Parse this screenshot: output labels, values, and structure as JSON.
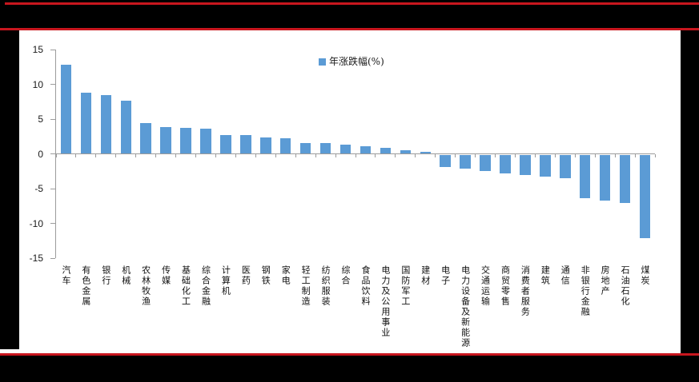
{
  "page": {
    "background_color": "#000000",
    "rule_color": "#C8161E",
    "panel_background": "#FFFFFF"
  },
  "legend": {
    "label": "年涨跌幅(%)"
  },
  "chart_data": {
    "type": "bar",
    "title": "",
    "xlabel": "",
    "ylabel": "",
    "ylim": [
      -15,
      15
    ],
    "yticks": [
      15,
      10,
      5,
      0,
      -5,
      -10,
      -15
    ],
    "grid": false,
    "legend_position": "top-center",
    "bar_color": "#5B9BD5",
    "axis_color": "#9c9c9c",
    "series_name": "年涨跌幅(%)",
    "categories": [
      "汽车",
      "有色金属",
      "银行",
      "机械",
      "农林牧渔",
      "传媒",
      "基础化工",
      "综合金融",
      "计算机",
      "医药",
      "钢铁",
      "家电",
      "轻工制造",
      "纺织服装",
      "综合",
      "食品饮料",
      "电力及公用事业",
      "国防军工",
      "建材",
      "电子",
      "电力设备及新能源",
      "交通运输",
      "商贸零售",
      "消费者服务",
      "建筑",
      "通信",
      "非银行金融",
      "房地产",
      "石油石化",
      "煤炭"
    ],
    "values": [
      12.8,
      8.8,
      8.5,
      7.6,
      4.4,
      3.9,
      3.7,
      3.6,
      2.7,
      2.7,
      2.4,
      2.2,
      1.6,
      1.5,
      1.3,
      1.1,
      0.9,
      0.5,
      0.3,
      -1.8,
      -2.0,
      -2.3,
      -2.7,
      -2.9,
      -3.2,
      -3.4,
      -6.3,
      -6.6,
      -7.0,
      -12.0
    ]
  }
}
